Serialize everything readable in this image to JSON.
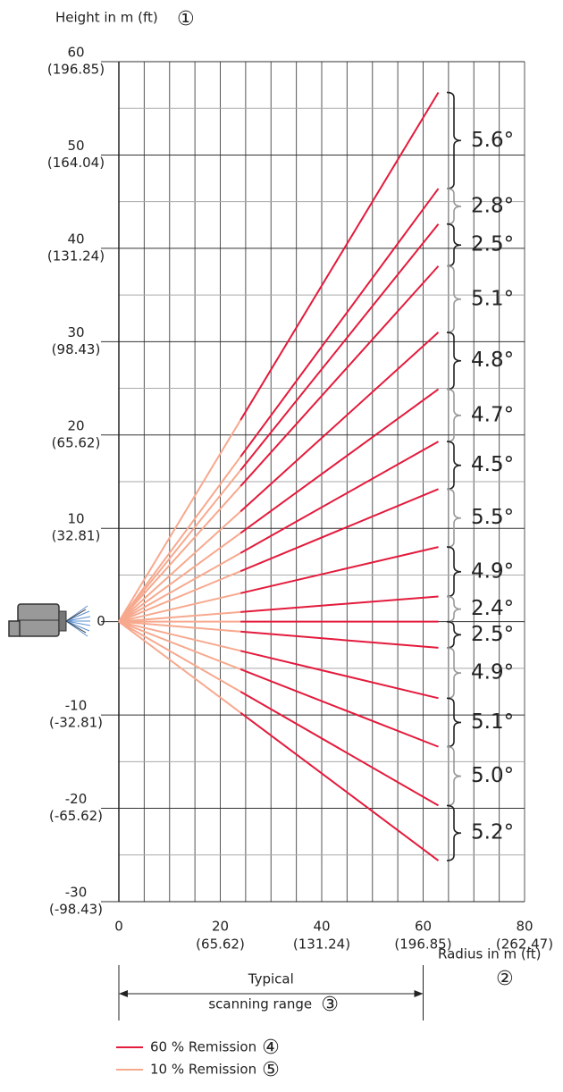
{
  "chart_data": {
    "type": "ray",
    "title": "Height in m (ft)",
    "title_marker": "①",
    "x_label": "Radius in m (ft)",
    "x_label_marker": "②",
    "range_label_lines": [
      "Typical",
      "scanning range"
    ],
    "range_marker": "③",
    "scanning_range": [
      0,
      60
    ],
    "xlim": [
      0,
      80
    ],
    "ylim": [
      -30,
      60
    ],
    "xticks": [
      0,
      20,
      40,
      60,
      80
    ],
    "xtick_ft_labels": [
      null,
      "(65.62)",
      "(131.24)",
      "(196.85)",
      "(262.47)"
    ],
    "yticks": [
      -30,
      -20,
      -10,
      0,
      10,
      20,
      30,
      40,
      50,
      60
    ],
    "ytick_ft_labels": [
      "(-98.43)",
      "(-65.62)",
      "(-32.81)",
      null,
      "(32.81)",
      "(65.62)",
      "(98.43)",
      "(131.24)",
      "(164.04)",
      "(196.85)"
    ],
    "grid_xticks": [
      0,
      5,
      10,
      15,
      20,
      25,
      30,
      35,
      40,
      45,
      50,
      55,
      60,
      65,
      70,
      75,
      80
    ],
    "grid_yticks": [
      -30,
      -25,
      -20,
      -15,
      -10,
      -5,
      0,
      5,
      10,
      15,
      20,
      25,
      30,
      35,
      40,
      45,
      50,
      55,
      60
    ],
    "grid": true,
    "x_end": 63,
    "rays": [
      56.7,
      46.4,
      42.6,
      38.1,
      31.0,
      24.9,
      19.3,
      14.2,
      8.0,
      2.7,
      0,
      -2.8,
      -8.2,
      -13.4,
      -19.7,
      -25.6
    ],
    "series": [
      {
        "name": "60 % Remission",
        "marker": "④",
        "color": "#e31b3c",
        "range": [
          24,
          63
        ]
      },
      {
        "name": "10 % Remission",
        "marker": "⑤",
        "color": "#f7a98e",
        "range": [
          0,
          24
        ]
      }
    ],
    "angles": [
      5.6,
      2.8,
      2.5,
      5.1,
      4.8,
      4.7,
      4.5,
      5.5,
      4.9,
      2.4,
      2.5,
      4.9,
      5.1,
      5.0,
      5.2
    ],
    "angle_labels": [
      "5.6°",
      "2.8°",
      "2.5°",
      "5.1°",
      "4.8°",
      "4.7°",
      "4.5°",
      "5.5°",
      "4.9°",
      "2.4°",
      "2.5°",
      "4.9°",
      "5.1°",
      "5.0°",
      "5.2°"
    ],
    "brace_colors": [
      "#222",
      "#999",
      "#222",
      "#999",
      "#222",
      "#999",
      "#222",
      "#999",
      "#222",
      "#999",
      "#222",
      "#999",
      "#222",
      "#999",
      "#222"
    ]
  }
}
